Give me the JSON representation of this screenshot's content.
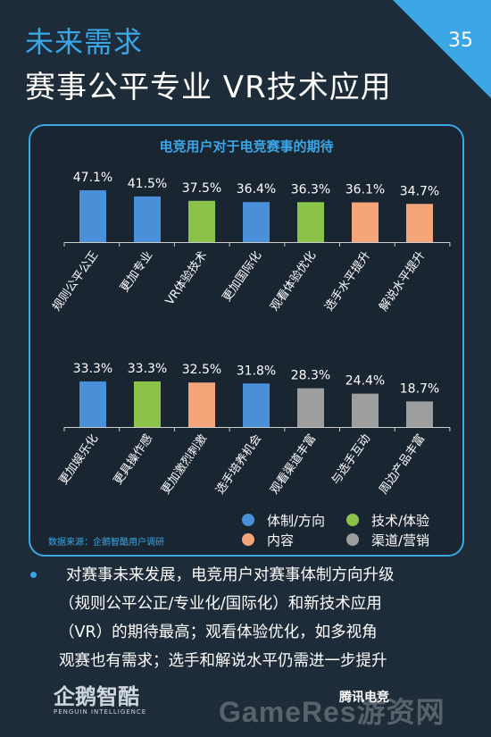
{
  "header": {
    "title_line1": "未来需求",
    "title_line2": "赛事公平专业 VR技术应用",
    "page_number": "35"
  },
  "colors": {
    "blue": "#4a90d9",
    "green": "#8bc34a",
    "orange": "#f4a57a",
    "gray": "#9e9e9e",
    "accent": "#3aa6e6"
  },
  "chart_data": {
    "type": "bar",
    "title": "电竞用户对于电竞赛事的期待",
    "ylim": [
      0,
      50
    ],
    "rows": [
      {
        "categories": [
          "规则公平公正",
          "更加专业",
          "VR体验技术",
          "更加国际化",
          "观看体验优化",
          "选手水平提升",
          "解说水平提升"
        ],
        "values": [
          47.1,
          41.5,
          37.5,
          36.4,
          36.3,
          36.1,
          34.7
        ],
        "labels": [
          "47.1%",
          "41.5%",
          "37.5%",
          "36.4%",
          "36.3%",
          "36.1%",
          "34.7%"
        ],
        "groups": [
          "体制/方向",
          "体制/方向",
          "技术/体验",
          "体制/方向",
          "技术/体验",
          "内容",
          "内容"
        ]
      },
      {
        "categories": [
          "更加娱乐化",
          "更具操作感",
          "更加激烈刺激",
          "选手培养机会",
          "观看渠道丰富",
          "与选手互动",
          "周边产品丰富"
        ],
        "values": [
          33.3,
          33.3,
          32.5,
          31.8,
          28.3,
          24.4,
          18.7
        ],
        "labels": [
          "33.3%",
          "33.3%",
          "32.5%",
          "31.8%",
          "28.3%",
          "24.4%",
          "18.7%"
        ],
        "groups": [
          "体制/方向",
          "技术/体验",
          "内容",
          "体制/方向",
          "渠道/营销",
          "渠道/营销",
          "渠道/营销"
        ]
      }
    ],
    "legend": [
      {
        "name": "体制/方向",
        "color": "#4a90d9"
      },
      {
        "name": "技术/体验",
        "color": "#8bc34a"
      },
      {
        "name": "内容",
        "color": "#f4a57a"
      },
      {
        "name": "渠道/营销",
        "color": "#9e9e9e"
      }
    ],
    "legend_position": "bottom-right"
  },
  "source": "数据来源：企鹅智酷用户调研",
  "body_lines": [
    "对赛事未来发展，电竞用户对赛事体制方向升级",
    "（规则公平公正/专业化/国际化）和新技术应用",
    "（VR）的期待最高；观看体验优化，如多视角",
    "观赛也有需求；选手和解说水平仍需进一步提升"
  ],
  "footer": {
    "logo_left": "企鹅智酷",
    "logo_left_sub": "PENGUIN INTELLIGENCE",
    "logo_right": "腾讯电竞",
    "watermark": "GameRes游资网"
  }
}
